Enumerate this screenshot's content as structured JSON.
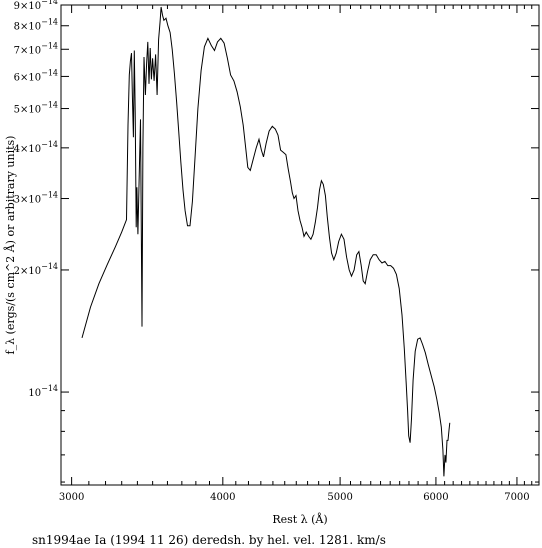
{
  "chart_data": {
    "type": "line",
    "xlabel": "Rest λ (Å)",
    "ylabel": "f_λ (ergs/(s cm^2 Å) or arbitrary units)",
    "caption": "sn1994ae Ia (1994 11 26) deredsh. by hel. vel.  1281. km/s",
    "x_scale": "log",
    "y_scale": "log",
    "xlim": [
      2940,
      7300
    ],
    "ylim": [
      5.9e-15,
      9e-14
    ],
    "x_ticks": [
      {
        "value": 3000,
        "label": "3000"
      },
      {
        "value": 4000,
        "label": "4000"
      },
      {
        "value": 5000,
        "label": "5000"
      },
      {
        "value": 6000,
        "label": "6000"
      },
      {
        "value": 7000,
        "label": "7000"
      }
    ],
    "y_ticks": [
      {
        "value": 1e-14,
        "mantissa": "",
        "exponent": "−14",
        "base": "10"
      },
      {
        "value": 2e-14,
        "mantissa": "2×",
        "exponent": "−14",
        "base": "10"
      },
      {
        "value": 3e-14,
        "mantissa": "3×",
        "exponent": "−14",
        "base": "10"
      },
      {
        "value": 4e-14,
        "mantissa": "4×",
        "exponent": "−14",
        "base": "10"
      },
      {
        "value": 5e-14,
        "mantissa": "5×",
        "exponent": "−14",
        "base": "10"
      },
      {
        "value": 6e-14,
        "mantissa": "6×",
        "exponent": "−14",
        "base": "10"
      },
      {
        "value": 7e-14,
        "mantissa": "7×",
        "exponent": "−14",
        "base": "10"
      },
      {
        "value": 8e-14,
        "mantissa": "8×",
        "exponent": "−14",
        "base": "10"
      },
      {
        "value": 9e-14,
        "mantissa": "9×",
        "exponent": "−14",
        "base": "10"
      }
    ],
    "series": [
      {
        "color": "#000000",
        "points": [
          [
            3060,
            1.36e-14
          ],
          [
            3110,
            1.62e-14
          ],
          [
            3160,
            1.85e-14
          ],
          [
            3210,
            2.06e-14
          ],
          [
            3260,
            2.28e-14
          ],
          [
            3300,
            2.48e-14
          ],
          [
            3330,
            2.66e-14
          ],
          [
            3340,
            4.55e-14
          ],
          [
            3348,
            6.05e-14
          ],
          [
            3355,
            6.55e-14
          ],
          [
            3362,
            6.85e-14
          ],
          [
            3368,
            5.35e-14
          ],
          [
            3374,
            4.25e-14
          ],
          [
            3380,
            6.95e-14
          ],
          [
            3386,
            4.9e-14
          ],
          [
            3392,
            2.55e-14
          ],
          [
            3397,
            3.2e-14
          ],
          [
            3403,
            2.45e-14
          ],
          [
            3410,
            3.15e-14
          ],
          [
            3420,
            4.7e-14
          ],
          [
            3430,
            1.45e-14
          ],
          [
            3436,
            4e-14
          ],
          [
            3443,
            6.7e-14
          ],
          [
            3452,
            5.4e-14
          ],
          [
            3460,
            6.45e-14
          ],
          [
            3468,
            7.3e-14
          ],
          [
            3476,
            5.75e-14
          ],
          [
            3484,
            7.05e-14
          ],
          [
            3492,
            5.9e-14
          ],
          [
            3500,
            6.65e-14
          ],
          [
            3510,
            5.85e-14
          ],
          [
            3520,
            6.8e-14
          ],
          [
            3530,
            5.4e-14
          ],
          [
            3540,
            7.4e-14
          ],
          [
            3550,
            8.2e-14
          ],
          [
            3557,
            8.9e-14
          ],
          [
            3566,
            8.5e-14
          ],
          [
            3576,
            8.25e-14
          ],
          [
            3590,
            8.35e-14
          ],
          [
            3603,
            8e-14
          ],
          [
            3618,
            7.7e-14
          ],
          [
            3633,
            7e-14
          ],
          [
            3648,
            6.1e-14
          ],
          [
            3663,
            5.2e-14
          ],
          [
            3678,
            4.4e-14
          ],
          [
            3693,
            3.7e-14
          ],
          [
            3708,
            3.15e-14
          ],
          [
            3723,
            2.8e-14
          ],
          [
            3740,
            2.57e-14
          ],
          [
            3758,
            2.57e-14
          ],
          [
            3775,
            2.95e-14
          ],
          [
            3795,
            3.85e-14
          ],
          [
            3815,
            5e-14
          ],
          [
            3838,
            6.2e-14
          ],
          [
            3862,
            7.1e-14
          ],
          [
            3888,
            7.45e-14
          ],
          [
            3913,
            7.15e-14
          ],
          [
            3937,
            6.95e-14
          ],
          [
            3960,
            7.3e-14
          ],
          [
            3985,
            7.45e-14
          ],
          [
            4010,
            7.25e-14
          ],
          [
            4035,
            6.65e-14
          ],
          [
            4060,
            6.05e-14
          ],
          [
            4085,
            5.85e-14
          ],
          [
            4110,
            5.5e-14
          ],
          [
            4135,
            5.05e-14
          ],
          [
            4158,
            4.55e-14
          ],
          [
            4178,
            4e-14
          ],
          [
            4195,
            3.58e-14
          ],
          [
            4215,
            3.52e-14
          ],
          [
            4238,
            3.75e-14
          ],
          [
            4262,
            4e-14
          ],
          [
            4285,
            4.2e-14
          ],
          [
            4305,
            3.95e-14
          ],
          [
            4322,
            3.8e-14
          ],
          [
            4343,
            4.1e-14
          ],
          [
            4368,
            4.4e-14
          ],
          [
            4395,
            4.52e-14
          ],
          [
            4420,
            4.45e-14
          ],
          [
            4443,
            4.3e-14
          ],
          [
            4465,
            3.95e-14
          ],
          [
            4487,
            3.9e-14
          ],
          [
            4510,
            3.85e-14
          ],
          [
            4530,
            3.55e-14
          ],
          [
            4550,
            3.3e-14
          ],
          [
            4565,
            3.1e-14
          ],
          [
            4580,
            3e-14
          ],
          [
            4598,
            3.05e-14
          ],
          [
            4615,
            2.8e-14
          ],
          [
            4633,
            2.65e-14
          ],
          [
            4650,
            2.55e-14
          ],
          [
            4668,
            2.42e-14
          ],
          [
            4688,
            2.48e-14
          ],
          [
            4710,
            2.42e-14
          ],
          [
            4730,
            2.38e-14
          ],
          [
            4750,
            2.45e-14
          ],
          [
            4770,
            2.62e-14
          ],
          [
            4790,
            2.85e-14
          ],
          [
            4808,
            3.15e-14
          ],
          [
            4825,
            3.32e-14
          ],
          [
            4843,
            3.25e-14
          ],
          [
            4862,
            3.05e-14
          ],
          [
            4880,
            2.7e-14
          ],
          [
            4900,
            2.4e-14
          ],
          [
            4920,
            2.2e-14
          ],
          [
            4940,
            2.12e-14
          ],
          [
            4963,
            2.2e-14
          ],
          [
            4987,
            2.35e-14
          ],
          [
            5012,
            2.45e-14
          ],
          [
            5037,
            2.38e-14
          ],
          [
            5062,
            2.15e-14
          ],
          [
            5087,
            2e-14
          ],
          [
            5110,
            1.93e-14
          ],
          [
            5135,
            2e-14
          ],
          [
            5160,
            2.18e-14
          ],
          [
            5182,
            2.22e-14
          ],
          [
            5205,
            2.05e-14
          ],
          [
            5225,
            1.88e-14
          ],
          [
            5245,
            1.85e-14
          ],
          [
            5268,
            1.98e-14
          ],
          [
            5295,
            2.12e-14
          ],
          [
            5325,
            2.18e-14
          ],
          [
            5355,
            2.18e-14
          ],
          [
            5385,
            2.12e-14
          ],
          [
            5415,
            2.08e-14
          ],
          [
            5445,
            2.1e-14
          ],
          [
            5475,
            2.05e-14
          ],
          [
            5505,
            2.05e-14
          ],
          [
            5535,
            2.02e-14
          ],
          [
            5565,
            1.95e-14
          ],
          [
            5595,
            1.8e-14
          ],
          [
            5625,
            1.55e-14
          ],
          [
            5650,
            1.28e-14
          ],
          [
            5670,
            1.05e-14
          ],
          [
            5685,
            9e-15
          ],
          [
            5697,
            7.8e-15
          ],
          [
            5712,
            7.5e-15
          ],
          [
            5728,
            8.6e-15
          ],
          [
            5745,
            1.07e-14
          ],
          [
            5768,
            1.26e-14
          ],
          [
            5795,
            1.35e-14
          ],
          [
            5822,
            1.36e-14
          ],
          [
            5850,
            1.31e-14
          ],
          [
            5880,
            1.25e-14
          ],
          [
            5912,
            1.17e-14
          ],
          [
            5945,
            1.1e-14
          ],
          [
            5980,
            1.03e-14
          ],
          [
            6010,
            9.6e-15
          ],
          [
            6038,
            8.9e-15
          ],
          [
            6062,
            8.2e-15
          ],
          [
            6080,
            7.2e-15
          ],
          [
            6092,
            6.2e-15
          ],
          [
            6104,
            7e-15
          ],
          [
            6115,
            6.7e-15
          ],
          [
            6128,
            7.6e-15
          ],
          [
            6140,
            7.6e-15
          ],
          [
            6152,
            8.1e-15
          ],
          [
            6160,
            8.4e-15
          ]
        ]
      }
    ]
  }
}
